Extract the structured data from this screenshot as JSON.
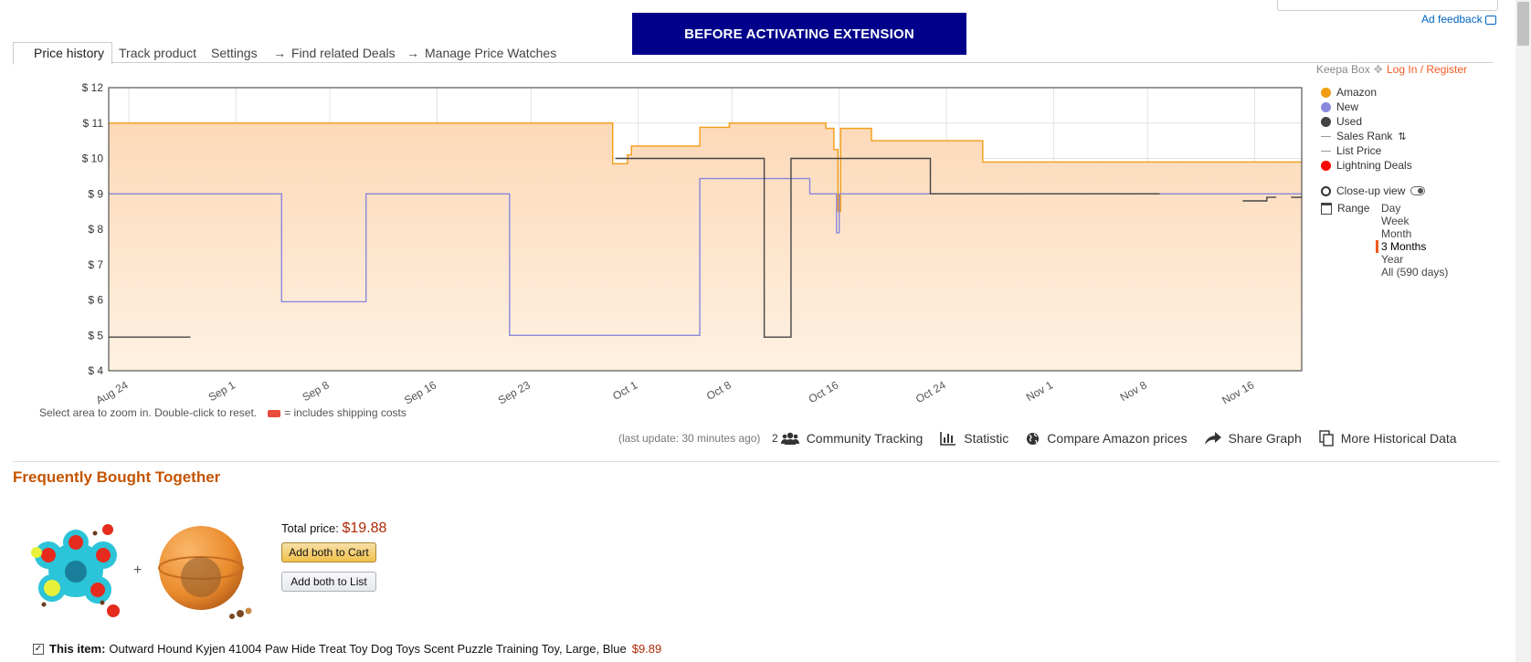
{
  "banner": {
    "text": "BEFORE ACTIVATING EXTENSION"
  },
  "ad_feedback": "Ad feedback",
  "tabs": [
    {
      "label": "Price history"
    },
    {
      "label": "Track product"
    },
    {
      "label": "Settings"
    },
    {
      "label": "Find related Deals"
    },
    {
      "label": "Manage Price Watches"
    }
  ],
  "tab_arrow": "→",
  "keepa": {
    "box_label": "Keepa Box",
    "login_label": "Log In / Register"
  },
  "legend": {
    "items": [
      {
        "label": "Amazon",
        "color": "#f39c12",
        "kind": "dot"
      },
      {
        "label": "New",
        "color": "#8888dd",
        "kind": "dot"
      },
      {
        "label": "Used",
        "color": "#444444",
        "kind": "dot"
      },
      {
        "label": "Sales Rank",
        "color": "#999999",
        "kind": "line"
      },
      {
        "label": "List Price",
        "color": "#999999",
        "kind": "line"
      },
      {
        "label": "Lightning Deals",
        "color": "#ff0000",
        "kind": "dot"
      }
    ],
    "closeup_label": "Close-up view",
    "range_label": "Range",
    "range_options": [
      "Day",
      "Week",
      "Month",
      "3 Months",
      "Year",
      "All (590 days)"
    ],
    "range_selected": "3 Months"
  },
  "chart_data": {
    "type": "line",
    "currency_prefix": "$",
    "ylim": [
      4,
      12
    ],
    "yticks": [
      "$ 12",
      "$ 11",
      "$ 10",
      "$ 9",
      "$ 8",
      "$ 7",
      "$ 6",
      "$ 5",
      "$ 4"
    ],
    "xlim_days": [
      0,
      89
    ],
    "xticks": [
      {
        "label": "Aug 24",
        "day": 1.5
      },
      {
        "label": "Sep 1",
        "day": 9.5
      },
      {
        "label": "Sep 8",
        "day": 16.5
      },
      {
        "label": "Sep 16",
        "day": 24.5
      },
      {
        "label": "Sep 23",
        "day": 31.5
      },
      {
        "label": "Oct 1",
        "day": 39.5
      },
      {
        "label": "Oct 8",
        "day": 46.5
      },
      {
        "label": "Oct 16",
        "day": 54.5
      },
      {
        "label": "Oct 24",
        "day": 62.5
      },
      {
        "label": "Nov 1",
        "day": 70.5
      },
      {
        "label": "Nov 8",
        "day": 77.5
      },
      {
        "label": "Nov 16",
        "day": 85.5
      }
    ],
    "series": [
      {
        "name": "Amazon",
        "color": "#f39c12",
        "fill": true,
        "points": [
          [
            0,
            11
          ],
          [
            37.6,
            11
          ],
          [
            37.6,
            9.85
          ],
          [
            38.7,
            9.85
          ],
          [
            38.7,
            10.1
          ],
          [
            39,
            10.1
          ],
          [
            39,
            10.35
          ],
          [
            44.1,
            10.35
          ],
          [
            44.1,
            10.88
          ],
          [
            46.3,
            10.88
          ],
          [
            46.3,
            11
          ],
          [
            53.5,
            11
          ],
          [
            53.5,
            10.85
          ],
          [
            54.1,
            10.85
          ],
          [
            54.1,
            10.25
          ],
          [
            54.4,
            10.25
          ],
          [
            54.4,
            8.5
          ],
          [
            54.6,
            8.5
          ],
          [
            54.6,
            10.85
          ],
          [
            56.9,
            10.85
          ],
          [
            56.9,
            10.5
          ],
          [
            65.2,
            10.5
          ],
          [
            65.2,
            9.9
          ],
          [
            89,
            9.9
          ]
        ]
      },
      {
        "name": "New",
        "color": "#8888dd",
        "fill": false,
        "points": [
          [
            0,
            9
          ],
          [
            12.9,
            9
          ],
          [
            12.9,
            5.95
          ],
          [
            19.2,
            5.95
          ],
          [
            19.2,
            9
          ],
          [
            29.9,
            9
          ],
          [
            29.9,
            5
          ],
          [
            44.1,
            5
          ],
          [
            44.1,
            9.43
          ],
          [
            52.3,
            9.43
          ],
          [
            52.3,
            9
          ],
          [
            54.3,
            9
          ],
          [
            54.3,
            7.9
          ],
          [
            54.5,
            7.9
          ],
          [
            54.5,
            9
          ],
          [
            89,
            9
          ]
        ]
      },
      {
        "name": "Used",
        "color": "#444444",
        "fill": false,
        "points": [
          [
            37.8,
            10
          ],
          [
            48.9,
            10
          ],
          [
            48.9,
            4.95
          ],
          [
            50.9,
            4.95
          ],
          [
            50.9,
            10
          ],
          [
            61.3,
            10
          ],
          [
            61.3,
            9
          ],
          [
            78.4,
            9
          ]
        ]
      },
      {
        "name": "Used",
        "color": "#444444",
        "fill": false,
        "points": [
          [
            0,
            4.95
          ],
          [
            6.1,
            4.95
          ]
        ]
      },
      {
        "name": "Used",
        "color": "#444444",
        "fill": false,
        "points": [
          [
            84.6,
            8.8
          ],
          [
            86.4,
            8.8
          ],
          [
            86.4,
            8.9
          ],
          [
            87.1,
            8.9
          ]
        ]
      },
      {
        "name": "Used",
        "color": "#444444",
        "fill": false,
        "points": [
          [
            88.2,
            8.9
          ],
          [
            89,
            8.9
          ]
        ]
      }
    ]
  },
  "chart_hint": {
    "text": "Select area to zoom in. Double-click to reset.",
    "shipping_note": "= includes shipping costs"
  },
  "last_update": "(last update: 30 minutes ago)",
  "toolbar": {
    "community_count": "2",
    "community_label": "Community Tracking",
    "statistic_label": "Statistic",
    "compare_label": "Compare Amazon prices",
    "share_label": "Share Graph",
    "more_label": "More Historical Data"
  },
  "fbt": {
    "title": "Frequently Bought Together",
    "plus": "+",
    "total_label": "Total price:",
    "total_price": "$19.88",
    "add_cart_label": "Add both to Cart",
    "add_list_label": "Add both to List",
    "this_item_label": "This item:",
    "this_item_name": "Outward Hound Kyjen 41004 Paw Hide Treat Toy Dog Toys Scent Puzzle Training Toy, Large, Blue",
    "this_item_price": "$9.89"
  }
}
